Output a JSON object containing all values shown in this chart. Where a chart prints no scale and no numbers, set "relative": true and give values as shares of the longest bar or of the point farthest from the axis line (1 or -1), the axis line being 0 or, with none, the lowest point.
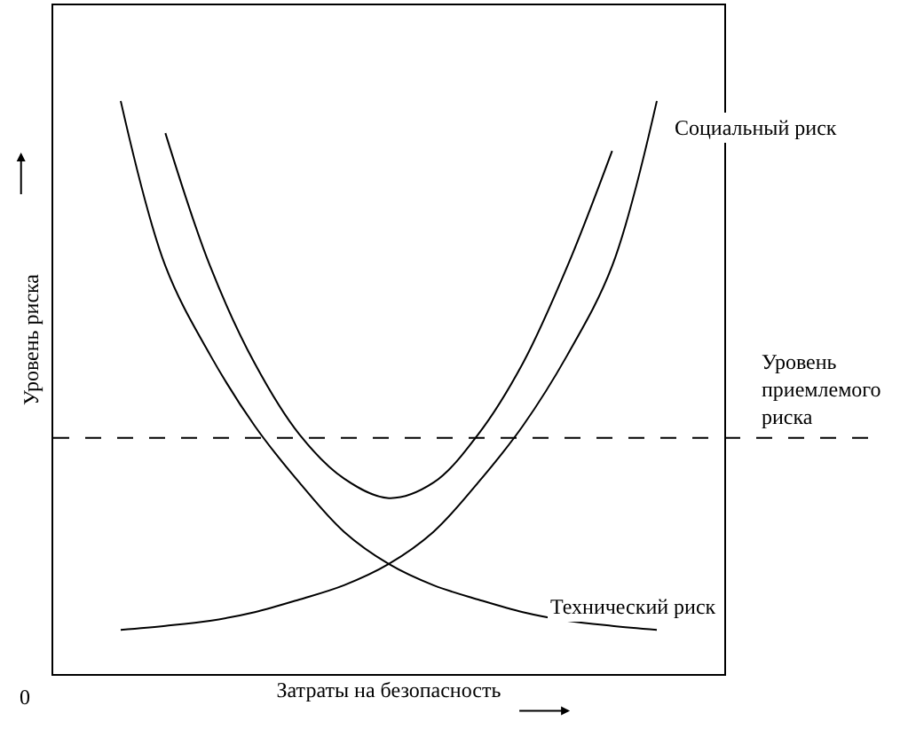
{
  "chart_data": {
    "type": "line",
    "relative": true,
    "xlabel": "Затраты на безопасность",
    "ylabel": "Уровень риска",
    "tick_labels": false,
    "marker": "none",
    "line_style": "solid",
    "categories": [
      null,
      null,
      null,
      null,
      null,
      null,
      null,
      null,
      null,
      null,
      null,
      null,
      null
    ],
    "series": [
      {
        "name": "Технический риск",
        "color": "#000000",
        "values": [
          1.0,
          0.712,
          0.557,
          0.433,
          0.334,
          0.248,
          0.192,
          0.155,
          0.13,
          0.108,
          0.093,
          0.084,
          0.077
        ]
      },
      {
        "name": "Социальный риск",
        "color": "#000000",
        "values": [
          0.077,
          0.084,
          0.093,
          0.108,
          0.13,
          0.155,
          0.192,
          0.248,
          0.334,
          0.433,
          0.557,
          0.712,
          1.0
        ]
      },
      {
        "color": "#000000",
        "values": [
          null,
          0.944,
          0.712,
          0.542,
          0.418,
          0.341,
          0.307,
          0.334,
          0.418,
          0.542,
          0.712,
          0.913,
          null
        ]
      }
    ],
    "ref_lines": [
      {
        "axis": "y",
        "value": 0.412,
        "label": "Уровень приемлемого риска",
        "color": "#000000",
        "line_style": "dashed"
      }
    ],
    "annotations": [
      "0"
    ]
  }
}
